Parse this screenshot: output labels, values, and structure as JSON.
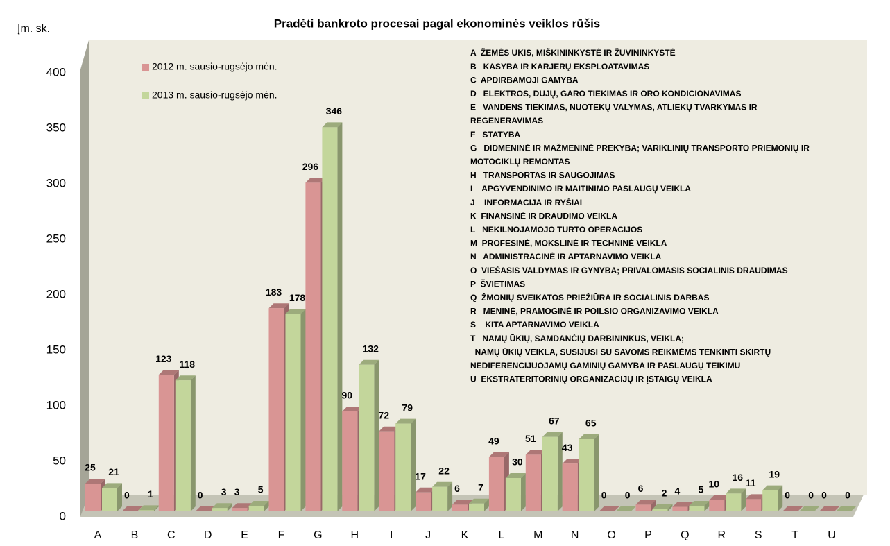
{
  "chart_data": {
    "type": "bar3d",
    "title": "Pradėti bankroto procesai pagal ekonominės veiklos rūšis",
    "ylabel": "Įm. sk.",
    "categories": [
      "A",
      "B",
      "C",
      "D",
      "E",
      "F",
      "G",
      "H",
      "I",
      "J",
      "K",
      "L",
      "M",
      "N",
      "O",
      "P",
      "Q",
      "R",
      "S",
      "T",
      "U"
    ],
    "series": [
      {
        "name": "2012 m. sausio-rugsėjo mėn.",
        "color": "#d99594",
        "values": [
          25,
          0,
          123,
          0,
          3,
          183,
          296,
          90,
          72,
          17,
          6,
          49,
          51,
          43,
          0,
          6,
          4,
          10,
          11,
          0,
          0
        ]
      },
      {
        "name": "2013 m. sausio-rugsėjo mėn.",
        "color": "#c3d69b",
        "values": [
          21,
          1,
          118,
          3,
          5,
          178,
          346,
          132,
          79,
          22,
          7,
          30,
          67,
          65,
          0,
          2,
          5,
          16,
          19,
          0,
          0
        ]
      }
    ],
    "ylim": [
      0,
      400
    ],
    "yticks": [
      0,
      50,
      100,
      150,
      200,
      250,
      300,
      350,
      400
    ],
    "grid": false,
    "legend": "upper left",
    "annotations": [
      "A  ŽEMĖS ŪKIS, MIŠKININKYSTĖ IR ŽUVININKYSTĖ",
      "B   KASYBA IR KARJERŲ EKSPLOATAVIMAS",
      "C  APDIRBAMOJI GAMYBA",
      "D   ELEKTROS, DUJŲ, GARO TIEKIMAS IR ORO KONDICIONAVIMAS",
      "E   VANDENS TIEKIMAS, NUOTEKŲ VALYMAS, ATLIEKŲ TVARKYMAS IR",
      "REGENERAVIMAS",
      "F   STATYBA",
      "G   DIDMENINĖ IR MAŽMENINĖ PREKYBA; VARIKLINIŲ TRANSPORTO PRIEMONIŲ IR",
      "MOTOCIKLŲ REMONTAS",
      "H   TRANSPORTAS IR SAUGOJIMAS",
      "I    APGYVENDINIMO IR MAITINIMO PASLAUGŲ VEIKLA",
      "J    INFORMACIJA IR RYŠIAI",
      "K  FINANSINĖ IR DRAUDIMO VEIKLA",
      "L   NEKILNOJAMOJO TURTO OPERACIJOS",
      "M  PROFESINĖ, MOKSLINĖ IR TECHNINĖ VEIKLA",
      "N   ADMINISTRACINĖ IR APTARNAVIMO VEIKLA",
      "O  VIEŠASIS VALDYMAS IR GYNYBA; PRIVALOMASIS SOCIALINIS DRAUDIMAS",
      "P  ŠVIETIMAS",
      "Q  ŽMONIŲ SVEIKATOS PRIEŽIŪRA IR SOCIALINIS DARBAS",
      "R   MENINĖ, PRAMOGINĖ IR POILSIO ORGANIZAVIMO VEIKLA",
      "S    KITA APTARNAVIMO VEIKLA",
      "T   NAMŲ ŪKIŲ, SAMDANČIŲ DARBININKUS, VEIKLA;",
      "  NAMŲ ŪKIŲ VEIKLA, SUSIJUSI SU SAVOMS REIKMĖMS TENKINTI SKIRTŲ",
      "NEDIFERENCIJUOJAMŲ GAMINIŲ GAMYBA IR PASLAUGŲ TEIKIMU",
      "U  EKSTRATERITORINIŲ ORGANIZACIJŲ IR ĮSTAIGŲ VEIKLA"
    ]
  }
}
